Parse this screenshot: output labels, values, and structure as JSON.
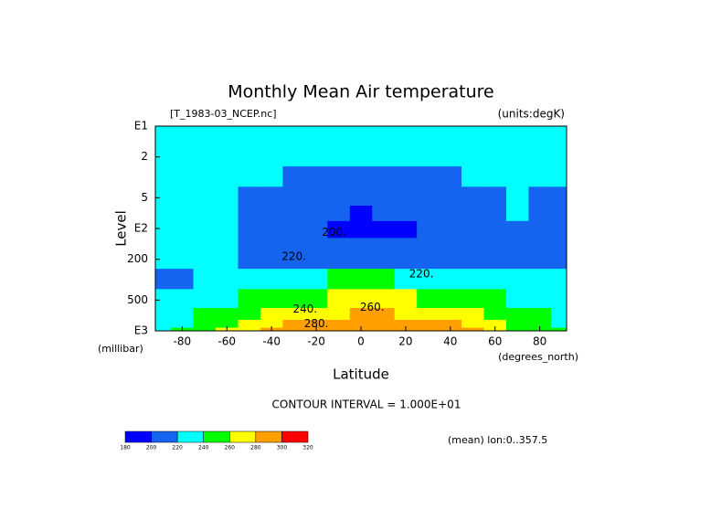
{
  "chart_data": {
    "type": "contour",
    "title": "Monthly Mean Air temperature",
    "subtitle": "[T_1983-03_NCEP.nc]",
    "units_label": "(units:degK)",
    "ylabel": "Level",
    "yunits": "(millibar)",
    "xlabel": "Latitude",
    "xunits": "(degrees_north)",
    "contour_interval": "CONTOUR INTERVAL = 1.000E+01",
    "footnote": "(mean) lon:0..357.5",
    "contour_labels": [
      "220.",
      "200.",
      "220.",
      "240.",
      "260.",
      "280."
    ],
    "x": [
      -90,
      -80,
      -70,
      -60,
      -50,
      -40,
      -30,
      -20,
      -10,
      0,
      10,
      20,
      30,
      40,
      50,
      60,
      70,
      80,
      90
    ],
    "y": [
      1000,
      850,
      700,
      500,
      300,
      200,
      150,
      100,
      70,
      50,
      30,
      20,
      10
    ],
    "z": [
      [
        230,
        245,
        255,
        268,
        278,
        285,
        290,
        293,
        295,
        296,
        296,
        295,
        292,
        287,
        280,
        270,
        258,
        248,
        240
      ],
      [
        225,
        238,
        248,
        258,
        270,
        278,
        283,
        286,
        288,
        289,
        289,
        288,
        285,
        280,
        272,
        262,
        252,
        244,
        238
      ],
      [
        222,
        232,
        242,
        250,
        258,
        266,
        272,
        276,
        279,
        280,
        280,
        279,
        276,
        270,
        262,
        254,
        246,
        240,
        236
      ],
      [
        220,
        225,
        230,
        238,
        244,
        250,
        255,
        258,
        260,
        261,
        261,
        260,
        257,
        252,
        246,
        240,
        236,
        233,
        232
      ],
      [
        218,
        219,
        221,
        224,
        228,
        232,
        236,
        238,
        240,
        240,
        240,
        239,
        237,
        233,
        228,
        225,
        223,
        222,
        222
      ],
      [
        228,
        226,
        224,
        222,
        219,
        217,
        216,
        215,
        215,
        214,
        214,
        215,
        216,
        217,
        218,
        218,
        216,
        215,
        214
      ],
      [
        226,
        225,
        223,
        221,
        217,
        214,
        211,
        209,
        207,
        206,
        207,
        208,
        210,
        213,
        216,
        217,
        218,
        217,
        216
      ],
      [
        224,
        223,
        222,
        220,
        216,
        212,
        207,
        203,
        199,
        196,
        197,
        199,
        205,
        210,
        214,
        216,
        219,
        216,
        214
      ],
      [
        224,
        223,
        222,
        221,
        218,
        214,
        210,
        206,
        202,
        199,
        200,
        203,
        207,
        212,
        216,
        218,
        221,
        217,
        215
      ],
      [
        225,
        224,
        223,
        222,
        219,
        216,
        213,
        210,
        208,
        206,
        207,
        209,
        212,
        215,
        217,
        219,
        222,
        219,
        217
      ],
      [
        227,
        226,
        225,
        224,
        222,
        221,
        219,
        217,
        216,
        215,
        216,
        217,
        218,
        219,
        221,
        222,
        224,
        222,
        220
      ],
      [
        229,
        228,
        227,
        226,
        225,
        224,
        224,
        223,
        222,
        222,
        222,
        223,
        223,
        224,
        225,
        226,
        227,
        226,
        225
      ],
      [
        232,
        231,
        230,
        230,
        229,
        228,
        230,
        232,
        233,
        234,
        233,
        232,
        231,
        230,
        230,
        229,
        231,
        232,
        232
      ]
    ],
    "levels": [
      180,
      200,
      220,
      240,
      260,
      280,
      300,
      320
    ],
    "colors": [
      "#0000ff",
      "#1464f0",
      "#00ffff",
      "#00ff00",
      "#ffff00",
      "#ffa000",
      "#ff0000"
    ],
    "xlim": [
      -92,
      92
    ],
    "xticks": [
      -80,
      -60,
      -40,
      -20,
      0,
      20,
      40,
      60,
      80
    ],
    "ylim": [
      1000,
      10
    ],
    "ylog": true,
    "yticks": [
      {
        "value": 1000,
        "label": "E3"
      },
      500,
      200,
      {
        "value": 100,
        "label": "E2"
      },
      {
        "value": 50,
        "label": "5"
      },
      {
        "value": 20,
        "label": "2"
      },
      {
        "value": 10,
        "label": "E1"
      }
    ]
  }
}
